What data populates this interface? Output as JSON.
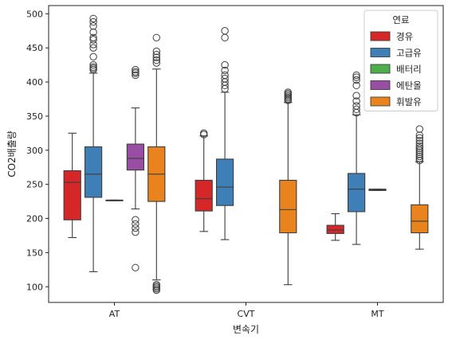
{
  "chart_data": {
    "type": "box",
    "xlabel": "변속기",
    "ylabel": "CO2배출량",
    "categories": [
      "AT",
      "CVT",
      "MT"
    ],
    "ylim": [
      77,
      512
    ],
    "yticks": [
      100,
      150,
      200,
      250,
      300,
      350,
      400,
      450,
      500
    ],
    "grid": false,
    "legend": {
      "title": "연료",
      "position": "top-right",
      "entries": [
        {
          "name": "경유",
          "color": "#d62728"
        },
        {
          "name": "고급유",
          "color": "#3f7fb8"
        },
        {
          "name": "배터리",
          "color": "#4daf4a"
        },
        {
          "name": "에탄올",
          "color": "#984ea3"
        },
        {
          "name": "휘발유",
          "color": "#e8831d"
        }
      ]
    },
    "boxes": [
      {
        "category": "AT",
        "series": "경유",
        "whisker_low": 172,
        "q1": 198,
        "median": 253,
        "q3": 270,
        "whisker_high": 325,
        "outliers": []
      },
      {
        "category": "AT",
        "series": "고급유",
        "whisker_low": 122,
        "q1": 231,
        "median": 265,
        "q3": 305,
        "whisker_high": 413,
        "outliers": [
          418,
          420,
          422,
          425,
          437,
          450,
          455,
          462,
          465,
          473,
          482,
          488,
          493
        ]
      },
      {
        "category": "AT",
        "series": "배터리",
        "whisker_low": 226,
        "q1": 226,
        "median": 226,
        "q3": 227,
        "whisker_high": 227,
        "outliers": []
      },
      {
        "category": "AT",
        "series": "에탄올",
        "whisker_low": 214,
        "q1": 271,
        "median": 288,
        "q3": 309,
        "whisker_high": 362,
        "outliers": [
          128,
          180,
          186,
          192,
          198,
          410,
          413,
          415,
          418
        ]
      },
      {
        "category": "AT",
        "series": "휘발유",
        "whisker_low": 110,
        "q1": 225,
        "median": 265,
        "q3": 305,
        "whisker_high": 419,
        "outliers": [
          95,
          97,
          99,
          101,
          103,
          428,
          432,
          436,
          440,
          445,
          465
        ]
      },
      {
        "category": "CVT",
        "series": "경유",
        "whisker_low": 181,
        "q1": 211,
        "median": 229,
        "q3": 256,
        "whisker_high": 321,
        "outliers": [
          323,
          325
        ]
      },
      {
        "category": "CVT",
        "series": "고급유",
        "whisker_low": 169,
        "q1": 219,
        "median": 246,
        "q3": 287,
        "whisker_high": 385,
        "outliers": [
          390,
          395,
          400,
          405,
          410,
          417,
          425,
          465,
          475
        ]
      },
      {
        "category": "CVT",
        "series": "휘발유",
        "whisker_low": 103,
        "q1": 179,
        "median": 213,
        "q3": 256,
        "whisker_high": 370,
        "outliers": [
          373,
          375,
          377,
          379,
          381,
          383,
          385
        ]
      },
      {
        "category": "MT",
        "series": "경유",
        "whisker_low": 168,
        "q1": 178,
        "median": 183,
        "q3": 190,
        "whisker_high": 207,
        "outliers": []
      },
      {
        "category": "MT",
        "series": "고급유",
        "whisker_low": 162,
        "q1": 210,
        "median": 243,
        "q3": 266,
        "whisker_high": 352,
        "outliers": [
          355,
          360,
          365,
          372,
          380,
          395,
          403,
          407,
          410
        ]
      },
      {
        "category": "MT",
        "series": "배터리",
        "whisker_low": 241,
        "q1": 241,
        "median": 242,
        "q3": 243,
        "whisker_high": 243,
        "outliers": []
      },
      {
        "category": "MT",
        "series": "휘발유",
        "whisker_low": 155,
        "q1": 179,
        "median": 196,
        "q3": 220,
        "whisker_high": 283,
        "outliers": [
          285,
          288,
          291,
          294,
          297,
          300,
          303,
          306,
          310,
          314,
          318,
          322,
          331
        ]
      }
    ]
  }
}
